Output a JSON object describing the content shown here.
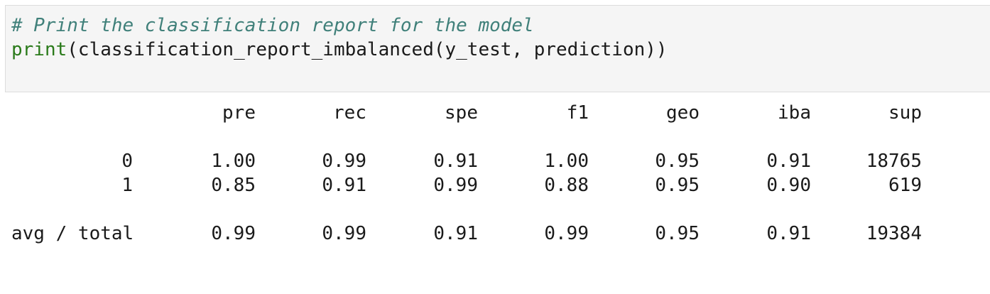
{
  "cell": {
    "comment": "# Print the classification report for the model",
    "code_keyword": "print",
    "code_rest": "(classification_report_imbalanced(y_test, prediction))"
  },
  "report": {
    "headers": [
      "pre",
      "rec",
      "spe",
      "f1",
      "geo",
      "iba",
      "sup"
    ],
    "rows": [
      {
        "label": "0",
        "values": [
          "1.00",
          "0.99",
          "0.91",
          "1.00",
          "0.95",
          "0.91",
          "18765"
        ]
      },
      {
        "label": "1",
        "values": [
          "0.85",
          "0.91",
          "0.99",
          "0.88",
          "0.95",
          "0.90",
          "619"
        ]
      }
    ],
    "total": {
      "label": "avg / total",
      "values": [
        "0.99",
        "0.99",
        "0.91",
        "0.99",
        "0.95",
        "0.91",
        "19384"
      ]
    }
  }
}
